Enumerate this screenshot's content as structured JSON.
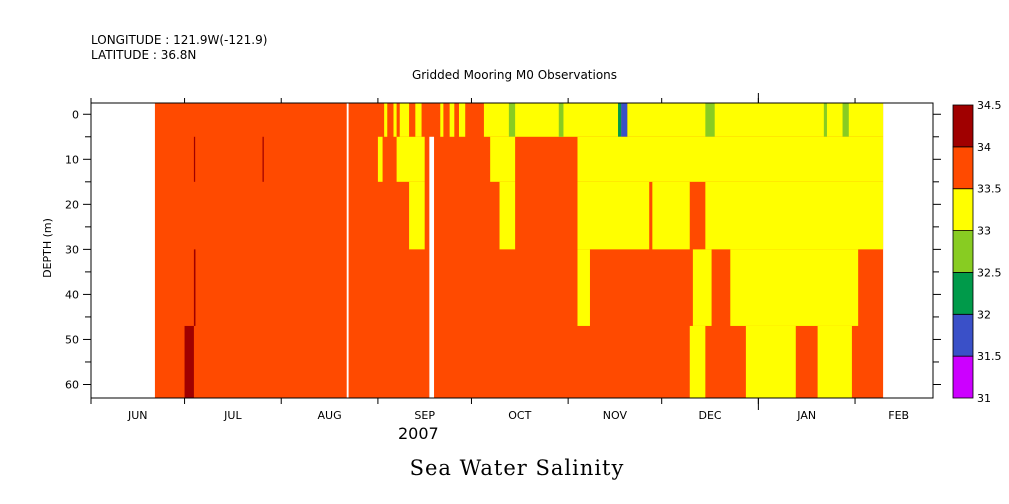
{
  "header": {
    "longitude_label": "LONGITUDE : 121.9W(-121.9)",
    "latitude_label": "LATITUDE : 36.8N",
    "plot_title": "Gridded Mooring M0 Observations",
    "year_label": "2007",
    "variable_title": "Sea Water Salinity"
  },
  "chart_data": {
    "type": "heatmap",
    "title": "Gridded Mooring M0 Observations",
    "variable": "Sea Water Salinity",
    "xlabel": "2007",
    "ylabel": "DEPTH (m)",
    "x_tick_labels": [
      "JUN",
      "JUL",
      "AUG",
      "SEP",
      "OCT",
      "NOV",
      "DEC",
      "JAN",
      "FEB"
    ],
    "x_range_days": [
      0,
      270
    ],
    "y_tick_labels": [
      "0",
      "10",
      "20",
      "30",
      "40",
      "50",
      "60"
    ],
    "y_ticks": [
      0,
      10,
      20,
      30,
      40,
      50,
      60
    ],
    "ylim": [
      63,
      -2.5
    ],
    "depth_levels": [
      0,
      10,
      20,
      30,
      40,
      50,
      60
    ],
    "colorbar": {
      "levels": [
        31,
        31.5,
        32,
        32.5,
        33,
        33.5,
        34,
        34.5
      ],
      "tick_labels": [
        "31",
        "31.5",
        "32",
        "32.5",
        "33",
        "33.5",
        "34",
        "34.5"
      ],
      "colors": [
        "#cc00ff",
        "#3a50c8",
        "#009a4a",
        "#88cc22",
        "#ffff00",
        "#ff4a00",
        "#a00000"
      ]
    },
    "data_start_day": 20.5,
    "data_end_day": 254,
    "gaps": [
      {
        "day_start": 82,
        "day_end": 82.6,
        "depth_bands": "all"
      },
      {
        "day_start": 108.5,
        "day_end": 110,
        "depth_bands": "5-63"
      }
    ],
    "background_value": 33.75,
    "segments": [
      {
        "band": "0-5",
        "day_start": 94,
        "day_end": 95,
        "value": 33.25
      },
      {
        "band": "0-5",
        "day_start": 97,
        "day_end": 98,
        "value": 33.25
      },
      {
        "band": "0-5",
        "day_start": 99,
        "day_end": 102,
        "value": 33.25
      },
      {
        "band": "0-5",
        "day_start": 104,
        "day_end": 106,
        "value": 33.25
      },
      {
        "band": "0-5",
        "day_start": 112,
        "day_end": 113,
        "value": 33.25
      },
      {
        "band": "0-5",
        "day_start": 115,
        "day_end": 116.5,
        "value": 33.25
      },
      {
        "band": "0-5",
        "day_start": 118,
        "day_end": 120,
        "value": 33.25
      },
      {
        "band": "0-5",
        "day_start": 126,
        "day_end": 170,
        "value": 33.25
      },
      {
        "band": "0-5",
        "day_start": 134,
        "day_end": 136,
        "value": 32.75
      },
      {
        "band": "0-5",
        "day_start": 150,
        "day_end": 151.5,
        "value": 32.75
      },
      {
        "band": "0-5",
        "day_start": 170,
        "day_end": 172,
        "value": 31.75
      },
      {
        "band": "0-5",
        "day_start": 169,
        "day_end": 170,
        "value": 32.25
      },
      {
        "band": "0-5",
        "day_start": 172,
        "day_end": 254,
        "value": 33.25
      },
      {
        "band": "0-5",
        "day_start": 197,
        "day_end": 200,
        "value": 32.75
      },
      {
        "band": "0-5",
        "day_start": 235,
        "day_end": 236,
        "value": 32.75
      },
      {
        "band": "0-5",
        "day_start": 241,
        "day_end": 243,
        "value": 32.75
      },
      {
        "band": "5-15",
        "day_start": 92,
        "day_end": 93.5,
        "value": 33.25
      },
      {
        "band": "5-15",
        "day_start": 98,
        "day_end": 107,
        "value": 33.25
      },
      {
        "band": "5-15",
        "day_start": 128,
        "day_end": 136,
        "value": 33.25
      },
      {
        "band": "5-15",
        "day_start": 156,
        "day_end": 254,
        "value": 33.25
      },
      {
        "band": "15-30",
        "day_start": 102,
        "day_end": 107,
        "value": 33.25
      },
      {
        "band": "15-30",
        "day_start": 131,
        "day_end": 136,
        "value": 33.25
      },
      {
        "band": "15-30",
        "day_start": 156,
        "day_end": 179,
        "value": 33.25
      },
      {
        "band": "15-30",
        "day_start": 180,
        "day_end": 192,
        "value": 33.25
      },
      {
        "band": "15-30",
        "day_start": 197,
        "day_end": 254,
        "value": 33.25
      },
      {
        "band": "30-47",
        "day_start": 156,
        "day_end": 160,
        "value": 33.25
      },
      {
        "band": "30-47",
        "day_start": 193,
        "day_end": 199,
        "value": 33.25
      },
      {
        "band": "30-47",
        "day_start": 205,
        "day_end": 246,
        "value": 33.25
      },
      {
        "band": "47-63",
        "day_start": 192,
        "day_end": 197,
        "value": 33.25
      },
      {
        "band": "47-63",
        "day_start": 210,
        "day_end": 226,
        "value": 33.25
      },
      {
        "band": "47-63",
        "day_start": 233,
        "day_end": 244,
        "value": 33.25
      },
      {
        "band": "47-63",
        "day_start": 30,
        "day_end": 33,
        "value": 34.25
      },
      {
        "band": "30-47",
        "day_start": 33,
        "day_end": 33.5,
        "value": 34.25
      },
      {
        "band": "5-15",
        "day_start": 33,
        "day_end": 33.4,
        "value": 34.25
      },
      {
        "band": "5-15",
        "day_start": 55,
        "day_end": 55.4,
        "value": 34.25
      }
    ]
  }
}
